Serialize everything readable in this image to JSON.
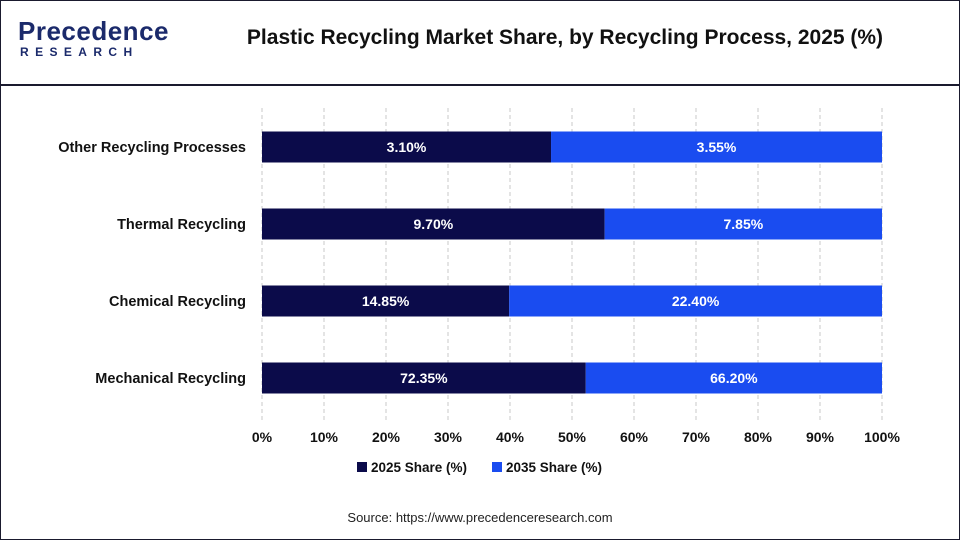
{
  "header": {
    "logo_top": "Precedence",
    "logo_bottom": "RESEARCH",
    "title": "Plastic Recycling Market Share, by Recycling Process, 2025 (%)"
  },
  "source": "Source: https://www.precedenceresearch.com",
  "colors": {
    "series_2025": "#0b0b4a",
    "series_2035": "#1a4cf0",
    "grid": "#c8c8c8",
    "text": "#111111"
  },
  "chart_data": {
    "type": "bar",
    "orientation": "horizontal",
    "stacking": "percent",
    "categories": [
      "Other Recycling Processes",
      "Thermal Recycling",
      "Chemical Recycling",
      "Mechanical Recycling"
    ],
    "series": [
      {
        "name": "2025 Share (%)",
        "values": [
          3.1,
          9.7,
          14.85,
          72.35
        ],
        "labels": [
          "3.10%",
          "9.70%",
          "14.85%",
          "72.35%"
        ]
      },
      {
        "name": "2035 Share (%)",
        "values": [
          3.55,
          7.85,
          22.4,
          66.2
        ],
        "labels": [
          "3.55%",
          "7.85%",
          "22.40%",
          "66.20%"
        ]
      }
    ],
    "xlim": [
      0,
      100
    ],
    "xticks": [
      "0%",
      "10%",
      "20%",
      "30%",
      "40%",
      "50%",
      "60%",
      "70%",
      "80%",
      "90%",
      "100%"
    ],
    "grid": "vertical-dashed",
    "legend": "bottom-center",
    "title": "Plastic Recycling Market Share, by Recycling Process, 2025 (%)",
    "xlabel": "",
    "ylabel": ""
  }
}
